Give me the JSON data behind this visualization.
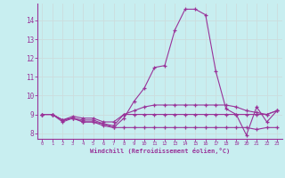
{
  "xlabel": "Windchill (Refroidissement éolien,°C)",
  "bg_color": "#c8eef0",
  "grid_color": "#ccdddd",
  "line_color": "#993399",
  "xlim": [
    -0.5,
    23.5
  ],
  "ylim": [
    7.7,
    14.9
  ],
  "xticks": [
    0,
    1,
    2,
    3,
    4,
    5,
    6,
    7,
    8,
    9,
    10,
    11,
    12,
    13,
    14,
    15,
    16,
    17,
    18,
    19,
    20,
    21,
    22,
    23
  ],
  "yticks": [
    8,
    9,
    10,
    11,
    12,
    13,
    14
  ],
  "lines": [
    [
      9.0,
      9.0,
      8.6,
      8.8,
      8.6,
      8.6,
      8.4,
      8.3,
      8.3,
      8.3,
      8.3,
      8.3,
      8.3,
      8.3,
      8.3,
      8.3,
      8.3,
      8.3,
      8.3,
      8.3,
      8.3,
      8.2,
      8.3,
      8.3
    ],
    [
      9.0,
      9.0,
      8.7,
      8.8,
      8.6,
      8.6,
      8.5,
      8.3,
      8.8,
      9.7,
      10.4,
      11.5,
      11.6,
      13.5,
      14.6,
      14.6,
      14.3,
      11.3,
      9.3,
      9.0,
      7.9,
      9.4,
      8.6,
      9.2
    ],
    [
      9.0,
      9.0,
      8.7,
      8.8,
      8.7,
      8.7,
      8.5,
      8.4,
      9.0,
      9.0,
      9.0,
      9.0,
      9.0,
      9.0,
      9.0,
      9.0,
      9.0,
      9.0,
      9.0,
      9.0,
      9.0,
      9.0,
      9.0,
      9.2
    ],
    [
      9.0,
      9.0,
      8.7,
      8.9,
      8.8,
      8.8,
      8.6,
      8.6,
      9.0,
      9.2,
      9.4,
      9.5,
      9.5,
      9.5,
      9.5,
      9.5,
      9.5,
      9.5,
      9.5,
      9.4,
      9.2,
      9.1,
      9.0,
      9.2
    ]
  ]
}
